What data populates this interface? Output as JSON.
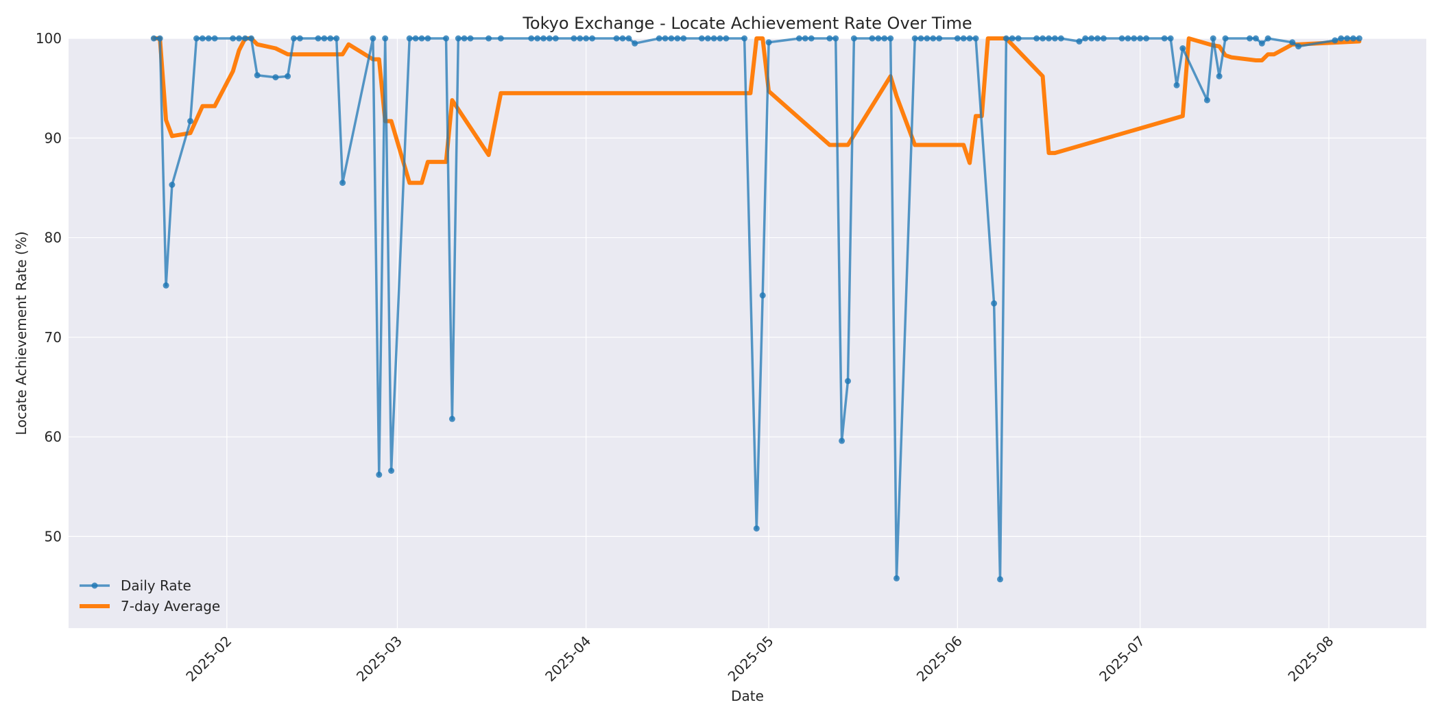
{
  "chart_data": {
    "type": "line",
    "title": "Tokyo Exchange - Locate Achievement Rate Over Time",
    "xlabel": "Date",
    "ylabel": "Locate Achievement Rate (%)",
    "x_type": "date",
    "xlim": [
      "2025-01-06",
      "2025-08-17"
    ],
    "ylim": [
      40.8,
      100
    ],
    "x_ticks": [
      "2025-02-01",
      "2025-03-01",
      "2025-04-01",
      "2025-05-01",
      "2025-06-01",
      "2025-07-01",
      "2025-08-01"
    ],
    "x_tick_labels": [
      "2025-02",
      "2025-03",
      "2025-04",
      "2025-05",
      "2025-06",
      "2025-07",
      "2025-08"
    ],
    "y_ticks": [
      50,
      60,
      70,
      80,
      90,
      100
    ],
    "grid": true,
    "legend_position": "lower-left",
    "series": [
      {
        "name": "Daily Rate",
        "color": "#1f77b4",
        "marker": "circle",
        "x": [
          "2025-01-20",
          "2025-01-21",
          "2025-01-22",
          "2025-01-23",
          "2025-01-26",
          "2025-01-27",
          "2025-01-28",
          "2025-01-29",
          "2025-01-30",
          "2025-02-02",
          "2025-02-03",
          "2025-02-04",
          "2025-02-05",
          "2025-02-06",
          "2025-02-09",
          "2025-02-11",
          "2025-02-12",
          "2025-02-13",
          "2025-02-16",
          "2025-02-17",
          "2025-02-18",
          "2025-02-19",
          "2025-02-20",
          "2025-02-25",
          "2025-02-26",
          "2025-02-27",
          "2025-02-28",
          "2025-03-03",
          "2025-03-04",
          "2025-03-05",
          "2025-03-06",
          "2025-03-09",
          "2025-03-10",
          "2025-03-11",
          "2025-03-12",
          "2025-03-13",
          "2025-03-16",
          "2025-03-18",
          "2025-03-23",
          "2025-03-24",
          "2025-03-25",
          "2025-03-26",
          "2025-03-27",
          "2025-03-30",
          "2025-03-31",
          "2025-04-01",
          "2025-04-02",
          "2025-04-06",
          "2025-04-07",
          "2025-04-08",
          "2025-04-09",
          "2025-04-13",
          "2025-04-14",
          "2025-04-15",
          "2025-04-16",
          "2025-04-17",
          "2025-04-20",
          "2025-04-21",
          "2025-04-22",
          "2025-04-23",
          "2025-04-24",
          "2025-04-27",
          "2025-04-29",
          "2025-04-30",
          "2025-05-01",
          "2025-05-06",
          "2025-05-07",
          "2025-05-08",
          "2025-05-11",
          "2025-05-12",
          "2025-05-13",
          "2025-05-14",
          "2025-05-15",
          "2025-05-18",
          "2025-05-19",
          "2025-05-20",
          "2025-05-21",
          "2025-05-22",
          "2025-05-25",
          "2025-05-26",
          "2025-05-27",
          "2025-05-28",
          "2025-05-29",
          "2025-06-01",
          "2025-06-02",
          "2025-06-03",
          "2025-06-04",
          "2025-06-07",
          "2025-06-08",
          "2025-06-09",
          "2025-06-10",
          "2025-06-11",
          "2025-06-14",
          "2025-06-15",
          "2025-06-16",
          "2025-06-17",
          "2025-06-18",
          "2025-06-21",
          "2025-06-22",
          "2025-06-23",
          "2025-06-24",
          "2025-06-25",
          "2025-06-28",
          "2025-06-29",
          "2025-06-30",
          "2025-07-01",
          "2025-07-02",
          "2025-07-05",
          "2025-07-06",
          "2025-07-07",
          "2025-07-08",
          "2025-07-12",
          "2025-07-13",
          "2025-07-14",
          "2025-07-15",
          "2025-07-19",
          "2025-07-20",
          "2025-07-21",
          "2025-07-22",
          "2025-07-26",
          "2025-07-27",
          "2025-08-02",
          "2025-08-03",
          "2025-08-04",
          "2025-08-05",
          "2025-08-06"
        ],
        "y": [
          100,
          100,
          75.2,
          85.3,
          91.7,
          100,
          100,
          100,
          100,
          100,
          100,
          100,
          100,
          96.3,
          96.1,
          96.2,
          100,
          100,
          100,
          100,
          100,
          100,
          85.5,
          100,
          56.2,
          100,
          56.6,
          100,
          100,
          100,
          100,
          100,
          61.8,
          100,
          100,
          100,
          100,
          100,
          100,
          100,
          100,
          100,
          100,
          100,
          100,
          100,
          100,
          100,
          100,
          100,
          99.5,
          100,
          100,
          100,
          100,
          100,
          100,
          100,
          100,
          100,
          100,
          100,
          50.8,
          74.2,
          99.6,
          100,
          100,
          100,
          100,
          100,
          59.6,
          65.6,
          100,
          100,
          100,
          100,
          100,
          45.8,
          100,
          100,
          100,
          100,
          100,
          100,
          100,
          100,
          100,
          73.4,
          45.7,
          100,
          100,
          100,
          100,
          100,
          100,
          100,
          100,
          99.7,
          100,
          100,
          100,
          100,
          100,
          100,
          100,
          100,
          100,
          100,
          100,
          95.3,
          99.0,
          93.8,
          100,
          96.2,
          100,
          100,
          100,
          99.5,
          100,
          99.6,
          99.2,
          99.8,
          100,
          100,
          100,
          100
        ]
      },
      {
        "name": "7-day Average",
        "color": "#ff7f0e",
        "x": [
          "2025-01-20",
          "2025-01-21",
          "2025-01-22",
          "2025-01-23",
          "2025-01-26",
          "2025-01-28",
          "2025-01-29",
          "2025-01-30",
          "2025-02-02",
          "2025-02-03",
          "2025-02-04",
          "2025-02-05",
          "2025-02-06",
          "2025-02-09",
          "2025-02-11",
          "2025-02-12",
          "2025-02-13",
          "2025-02-20",
          "2025-02-21",
          "2025-02-25",
          "2025-02-26",
          "2025-02-27",
          "2025-02-28",
          "2025-03-03",
          "2025-03-04",
          "2025-03-05",
          "2025-03-06",
          "2025-03-09",
          "2025-03-10",
          "2025-03-16",
          "2025-03-18",
          "2025-04-28",
          "2025-04-29",
          "2025-04-30",
          "2025-05-01",
          "2025-05-11",
          "2025-05-12",
          "2025-05-13",
          "2025-05-14",
          "2025-05-21",
          "2025-05-22",
          "2025-05-25",
          "2025-05-26",
          "2025-06-02",
          "2025-06-03",
          "2025-06-04",
          "2025-06-05",
          "2025-06-06",
          "2025-06-09",
          "2025-06-15",
          "2025-06-16",
          "2025-06-17",
          "2025-07-08",
          "2025-07-09",
          "2025-07-13",
          "2025-07-14",
          "2025-07-15",
          "2025-07-16",
          "2025-07-20",
          "2025-07-21",
          "2025-07-22",
          "2025-07-23",
          "2025-07-26",
          "2025-07-27",
          "2025-08-06"
        ],
        "y": [
          100,
          100,
          91.8,
          90.2,
          90.5,
          93.2,
          93.2,
          93.2,
          96.7,
          98.8,
          100,
          100,
          99.4,
          99.0,
          98.4,
          98.4,
          98.4,
          98.4,
          99.4,
          97.9,
          97.9,
          91.7,
          91.7,
          85.5,
          85.5,
          85.5,
          87.6,
          87.6,
          93.8,
          88.3,
          94.5,
          94.5,
          100,
          100,
          94.7,
          89.3,
          89.3,
          89.3,
          89.3,
          96.2,
          94.2,
          89.3,
          89.3,
          89.3,
          87.5,
          92.2,
          92.2,
          100,
          100,
          96.2,
          88.5,
          88.5,
          92.2,
          100,
          99.3,
          99.2,
          98.3,
          98.1,
          97.8,
          97.8,
          98.4,
          98.4,
          99.4,
          99.4,
          99.7
        ]
      }
    ]
  }
}
